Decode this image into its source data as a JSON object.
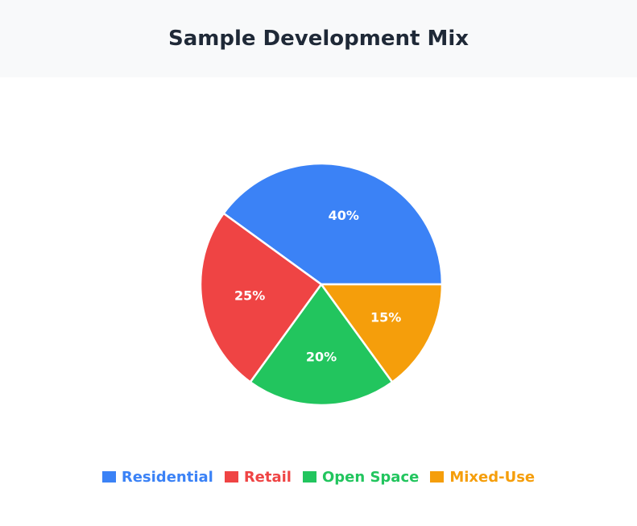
{
  "header": {
    "title": "Sample Development Mix"
  },
  "chart_data": {
    "type": "pie",
    "title": "Sample Development Mix",
    "categories": [
      "Residential",
      "Retail",
      "Open Space",
      "Mixed-Use"
    ],
    "values": [
      40,
      25,
      20,
      15
    ],
    "labels": [
      "40%",
      "25%",
      "20%",
      "15%"
    ],
    "colors": [
      "#3b82f6",
      "#ef4444",
      "#22c55e",
      "#f59e0b"
    ],
    "legend_position": "bottom"
  },
  "legend": {
    "items": [
      {
        "label": "Residential",
        "color": "#3b82f6"
      },
      {
        "label": "Retail",
        "color": "#ef4444"
      },
      {
        "label": "Open Space",
        "color": "#22c55e"
      },
      {
        "label": "Mixed-Use",
        "color": "#f59e0b"
      }
    ]
  }
}
